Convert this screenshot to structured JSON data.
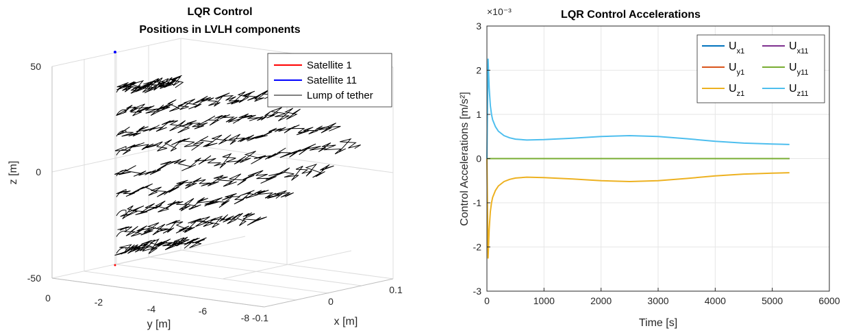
{
  "chart_data": [
    {
      "type": "line",
      "projection": "3d",
      "title": [
        "LQR Control",
        "Positions in LVLH components"
      ],
      "xlabel": "x  [m]",
      "ylabel": "y  [m]",
      "zlabel": "z  [m]",
      "x_ticks": [
        "-0.1",
        "0",
        "0.1"
      ],
      "y_ticks": [
        "0",
        "-2",
        "-4",
        "-6",
        "-8"
      ],
      "z_ticks": [
        "-50",
        "0",
        "50"
      ],
      "xlim": [
        -0.1,
        0.1
      ],
      "ylim": [
        -8,
        0
      ],
      "zlim": [
        -50,
        50
      ],
      "grid": true,
      "legend_position": "top-right",
      "series": [
        {
          "name": "Satellite 1",
          "color": "#ff0000"
        },
        {
          "name": "Satellite 11",
          "color": "#0000ff"
        },
        {
          "name": "Lump of tether",
          "color": "#000000"
        }
      ],
      "tether_lump_levels_z": [
        40,
        29,
        19,
        10,
        0,
        -10,
        -19,
        -29,
        -37
      ]
    },
    {
      "type": "line",
      "title": "LQR Control Accelerations",
      "xlabel": "Time  [s]",
      "ylabel": "Control Accelerations [m/s²]",
      "y_exponent": "×10⁻³",
      "xlim": [
        0,
        6000
      ],
      "ylim": [
        -3,
        3
      ],
      "x_ticks": [
        "0",
        "1000",
        "2000",
        "3000",
        "4000",
        "5000",
        "6000"
      ],
      "y_ticks": [
        "3",
        "2",
        "1",
        "0",
        "-1",
        "-2",
        "-3"
      ],
      "grid": true,
      "legend_position": "top-right",
      "legend_columns": 2,
      "series": [
        {
          "name": "U_x1",
          "label_main": "U",
          "label_sub": "x1",
          "color": "#0072bd",
          "x": [
            0,
            5300
          ],
          "y": [
            0,
            0
          ]
        },
        {
          "name": "U_x11",
          "label_main": "U",
          "label_sub": "x11",
          "color": "#7e2f8e",
          "x": [
            0,
            5300
          ],
          "y": [
            0,
            0
          ]
        },
        {
          "name": "U_y1",
          "label_main": "U",
          "label_sub": "y1",
          "color": "#d95319",
          "x": [
            0,
            5300
          ],
          "y": [
            0,
            0
          ]
        },
        {
          "name": "U_y11",
          "label_main": "U",
          "label_sub": "y11",
          "color": "#77ac30",
          "x": [
            0,
            5300
          ],
          "y": [
            0,
            0
          ]
        },
        {
          "name": "U_z1",
          "label_main": "U",
          "label_sub": "z1",
          "color": "#edb120",
          "x": [
            0,
            20,
            40,
            60,
            80,
            100,
            150,
            200,
            300,
            400,
            500,
            700,
            1000,
            1500,
            2000,
            2500,
            3000,
            3500,
            4000,
            4500,
            5000,
            5300
          ],
          "y": [
            0,
            -2.25,
            -1.6,
            -1.2,
            -1.0,
            -0.88,
            -0.72,
            -0.62,
            -0.52,
            -0.47,
            -0.44,
            -0.42,
            -0.43,
            -0.46,
            -0.5,
            -0.52,
            -0.5,
            -0.45,
            -0.39,
            -0.35,
            -0.33,
            -0.32
          ]
        },
        {
          "name": "U_z11",
          "label_main": "U",
          "label_sub": "z11",
          "color": "#4dbeee",
          "x": [
            0,
            20,
            40,
            60,
            80,
            100,
            150,
            200,
            300,
            400,
            500,
            700,
            1000,
            1500,
            2000,
            2500,
            3000,
            3500,
            4000,
            4500,
            5000,
            5300
          ],
          "y": [
            0,
            2.25,
            1.6,
            1.2,
            1.0,
            0.88,
            0.72,
            0.62,
            0.52,
            0.47,
            0.44,
            0.42,
            0.43,
            0.46,
            0.5,
            0.52,
            0.5,
            0.45,
            0.39,
            0.35,
            0.33,
            0.32
          ]
        }
      ]
    }
  ]
}
